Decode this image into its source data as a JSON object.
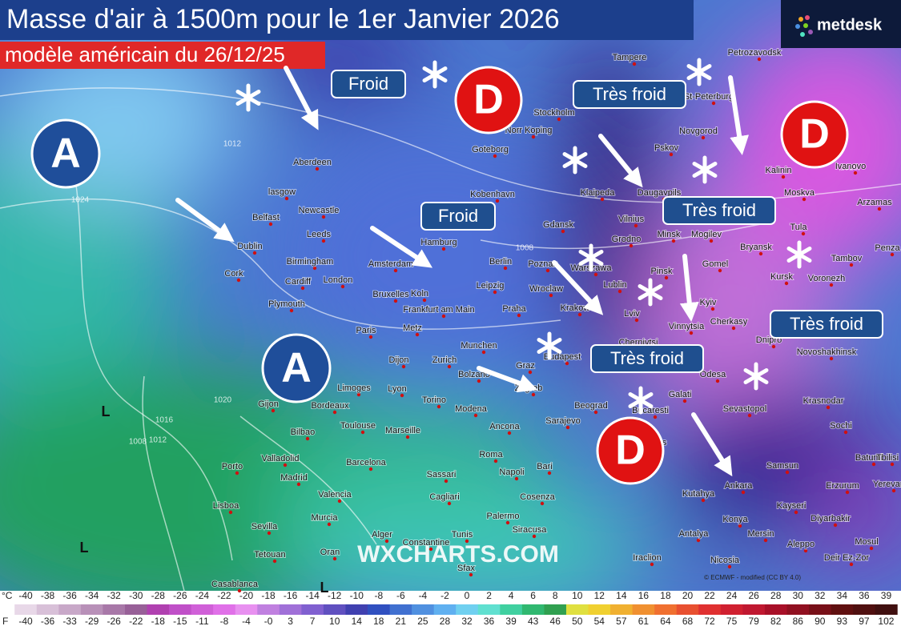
{
  "header": {
    "title": "Masse d'air à 1500m pour le 1er Janvier 2026",
    "subtitle": "modèle américain du 26/12/25"
  },
  "logo": "metdesk",
  "watermark": "WXCHARTS.COM",
  "credit": "© ECMWF - modified (CC BY 4.0)",
  "highs": [
    "A",
    "A"
  ],
  "lows": [
    "D",
    "D",
    "D"
  ],
  "callouts": [
    "Froid",
    "Très froid",
    "Froid",
    "Très froid",
    "Très froid",
    "Très froid"
  ],
  "low_markers": [
    "L",
    "L",
    "L"
  ],
  "isobar_labels": [
    "1024",
    "1012",
    "1016",
    "1020",
    "1008",
    "1012",
    "1008",
    "1016"
  ],
  "cities": [
    "Aberdeen",
    "lasgow",
    "Newcastle",
    "Belfast",
    "Leeds",
    "Dublin",
    "Birmingham",
    "Cork",
    "Cardiff",
    "London",
    "Plymouth",
    "Amsterdam",
    "Bruxelles",
    "Koln",
    "Hamburg",
    "Berlin",
    "Leipzig",
    "Frankfurt am Main",
    "Praha",
    "Paris",
    "Metz",
    "Munchen",
    "Dijon",
    "Zurich",
    "Bolzano",
    "Graz",
    "Lyon",
    "Limoges",
    "Bordeaux",
    "Torino",
    "Modena",
    "Zagreb",
    "Toulouse",
    "Marseille",
    "Ancona",
    "Sarajevo",
    "Beograd",
    "Gijon",
    "Bilbao",
    "Valladolid",
    "Madrid",
    "Barcelona",
    "Roma",
    "Bari",
    "Napoli",
    "Sassari",
    "Porto",
    "Lisboa",
    "Valencia",
    "Murcia",
    "Cagliari",
    "Cosenza",
    "Sevilla",
    "Palermo",
    "Siracusa",
    "Alger",
    "Constantine",
    "Tunis",
    "Oran",
    "Tetouan",
    "Casablanca",
    "Sfax",
    "Norr Koping",
    "Stockholm",
    "Goteborg",
    "Kobenhavn",
    "Gdansk",
    "Klaipeda",
    "Daugavpils",
    "Vilnius",
    "Grodno",
    "Minsk",
    "Mogilev",
    "Poznan",
    "Warszawa",
    "Wroclaw",
    "Krakow",
    "Lublin",
    "Pinsk",
    "Gomel",
    "Lviv",
    "Kyiv",
    "Chernivtsi",
    "Vinnytsia",
    "Cherkasy",
    "Budapest",
    "Galati",
    "Bucaresti",
    "Odesa",
    "Sevastopol",
    "Krasnodar",
    "Sochi",
    "Batumi",
    "Tbilisi",
    "Yerevan",
    "Erzurum",
    "Samsun",
    "Ankara",
    "Kutahya",
    "Kayseri",
    "Konya",
    "Diyarbakir",
    "Mersin",
    "Antalya",
    "Aleppo",
    "Mosul",
    "Nicosia",
    "Deir Ez-Zor",
    "Iraclion",
    "Burgas",
    "Tampere",
    "Petrozavodsk",
    "St-Peterburg",
    "Novgorod",
    "Pskov",
    "Kalinin",
    "Ivanovo",
    "Moskva",
    "Arzamas",
    "Tula",
    "Bryansk",
    "Tambov",
    "Penza",
    "Kursk",
    "Voronezh",
    "Dnipro",
    "Novoshakhinsk"
  ],
  "scale": {
    "celsius_unit": "°C",
    "celsius": [
      -40,
      -38,
      -36,
      -34,
      -32,
      -30,
      -28,
      -26,
      -24,
      -22,
      -20,
      -18,
      -16,
      -14,
      -12,
      -10,
      -8,
      -6,
      -4,
      -2,
      0,
      2,
      4,
      6,
      8,
      10,
      12,
      14,
      16,
      18,
      20,
      22,
      24,
      26,
      28,
      30,
      32,
      34,
      36,
      39
    ],
    "fahrenheit_unit": "F",
    "fahrenheit": [
      "-40",
      "-36",
      "-33",
      "-29",
      "-26",
      "-22",
      "-18",
      "-15",
      "-11",
      "-8",
      "-4",
      "-0",
      "3",
      "7",
      "10",
      "14",
      "18",
      "21",
      "25",
      "28",
      "32",
      "36",
      "39",
      "43",
      "46",
      "50",
      "54",
      "57",
      "61",
      "64",
      "68",
      "72",
      "75",
      "79",
      "82",
      "86",
      "90",
      "93",
      "97",
      "102"
    ],
    "colors": [
      "#e8d8e8",
      "#d8c0d8",
      "#c8a8c8",
      "#b890b8",
      "#a878a8",
      "#986098",
      "#b040b0",
      "#c050c8",
      "#d060d8",
      "#e070e8",
      "#e890f0",
      "#c080e0",
      "#a070d8",
      "#8060d0",
      "#6050c0",
      "#4040b0",
      "#3050c0",
      "#4070d0",
      "#5090e0",
      "#60b0f0",
      "#70d0f0",
      "#60e0d0",
      "#40d0a0",
      "#30b870",
      "#30a050",
      "#e0e040",
      "#f0d030",
      "#f0b030",
      "#f09030",
      "#f07030",
      "#e85030",
      "#e03030",
      "#d02030",
      "#c01830",
      "#a81028",
      "#901020",
      "#781018",
      "#601010",
      "#501010",
      "#401010"
    ]
  }
}
